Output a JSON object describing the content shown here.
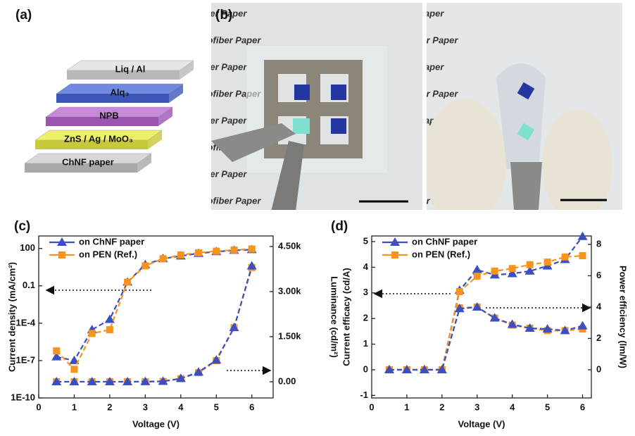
{
  "panel_labels": [
    "(a)",
    "(b)",
    "(c)",
    "(d)"
  ],
  "device_layers": [
    "Liq / Al",
    "Alq₃",
    "NPB",
    "ZnS / Ag / MoO₃",
    "ChNF paper"
  ],
  "photo_text": "Nanofiber Paper",
  "chart_data": [
    {
      "type": "line",
      "log_scale": true,
      "xlabel": "Voltage (V)",
      "ylabel": "Current density (mA/cm²)",
      "y2label": "Luminance (cd/m²)",
      "x": [
        0.5,
        1,
        1.5,
        2,
        2.5,
        3,
        3.5,
        4,
        4.5,
        5,
        5.5,
        6
      ],
      "xlim": [
        0,
        6.6
      ],
      "xticks": [
        0,
        1,
        2,
        3,
        4,
        5,
        6
      ],
      "ylim": [
        1e-10,
        1000
      ],
      "yticks": [
        {
          "value": 1e-10,
          "label": "1E-10"
        },
        {
          "value": 1e-07,
          "label": "1E-7"
        },
        {
          "value": 0.0001,
          "label": "1E-4"
        },
        0.1,
        100
      ],
      "y2lim": [
        -540,
        4850
      ],
      "y2ticks": [
        {
          "value": 0,
          "label": "0.00"
        },
        {
          "value": 1500,
          "label": "1.50k"
        },
        {
          "value": 3000,
          "label": "3.00k"
        },
        {
          "value": 4500,
          "label": "4.50k"
        }
      ],
      "legend": "upper left",
      "series": [
        {
          "name": "on ChNF paper",
          "color": "#3b4fc0",
          "marker": "triangle",
          "values": [
            2e-07,
            1e-07,
            3e-05,
            0.0002,
            0.2,
            5,
            15,
            25,
            40,
            55,
            70,
            80
          ]
        },
        {
          "name": "on PEN (Ref.)",
          "color": "#f7941d",
          "marker": "square",
          "values": [
            6e-07,
            2e-08,
            1.5e-05,
            3e-05,
            0.2,
            4,
            15,
            30,
            45,
            60,
            75,
            90
          ]
        },
        {
          "name": "on PEN (Ref.)",
          "color": "#f7941d",
          "marker": "square",
          "axis": "y2",
          "values": [
            0,
            0,
            0,
            0,
            0,
            0,
            10,
            100,
            300,
            700,
            1800,
            3800
          ]
        },
        {
          "name": "on ChNF paper",
          "color": "#3b4fc0",
          "marker": "triangle",
          "axis": "y2",
          "values": [
            0,
            0,
            0,
            0,
            0,
            5,
            15,
            110,
            320,
            720,
            1800,
            3850
          ]
        }
      ]
    },
    {
      "type": "line",
      "log_scale": false,
      "xlabel": "Voltage (V)",
      "ylabel": "Current efficacy (cd/A)",
      "y2label": "Power efficiency (lm/W)",
      "x": [
        0.5,
        1,
        1.5,
        2,
        2.5,
        3,
        3.5,
        4,
        4.5,
        5,
        5.5,
        6
      ],
      "xlim": [
        0,
        6.25
      ],
      "xticks": [
        0,
        1,
        2,
        3,
        4,
        5,
        6
      ],
      "ylim": [
        -1.1,
        5.22
      ],
      "yticks": [
        -1,
        0,
        1,
        2,
        3,
        4,
        5
      ],
      "y2lim": [
        -1.8,
        8.54
      ],
      "y2ticks": [
        0,
        2,
        4,
        6,
        8
      ],
      "legend": "upper left",
      "series": [
        {
          "name": "on ChNF paper",
          "color": "#3b4fc0",
          "marker": "triangle",
          "values": [
            0,
            0,
            0,
            0,
            3.1,
            3.9,
            3.7,
            3.75,
            3.85,
            4.05,
            4.3,
            5.2
          ]
        },
        {
          "name": "on PEN (Ref.)",
          "color": "#f7941d",
          "marker": "square",
          "values": [
            0,
            0,
            0,
            0,
            3.05,
            3.65,
            3.85,
            3.95,
            4.1,
            4.2,
            4.4,
            4.45
          ]
        },
        {
          "name": "on PEN (Ref.)",
          "color": "#f7941d",
          "marker": "square",
          "axis": "y2",
          "values": [
            0,
            0,
            0,
            0,
            3.95,
            4.0,
            3.3,
            2.85,
            2.65,
            2.5,
            2.5,
            2.6
          ]
        },
        {
          "name": "on ChNF paper",
          "color": "#3b4fc0",
          "marker": "triangle",
          "axis": "y2",
          "values": [
            0,
            0,
            0,
            0,
            3.9,
            4.0,
            3.3,
            2.9,
            2.65,
            2.6,
            2.5,
            2.8
          ]
        }
      ]
    }
  ]
}
